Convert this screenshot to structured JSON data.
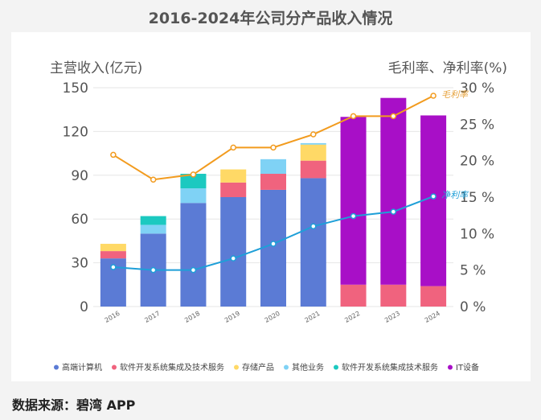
{
  "title": "2016-2024年公司分产品收入情况",
  "source": "数据来源：碧湾 APP",
  "chart_data": {
    "type": "bar",
    "stacked": true,
    "categories": [
      "2016",
      "2017",
      "2018",
      "2019",
      "2020",
      "2021",
      "2022",
      "2023",
      "2024"
    ],
    "ylabel": "主营收入(亿元)",
    "y2label": "毛利率、净利率(%)",
    "ylim": [
      0,
      150
    ],
    "yticks": [
      0,
      30,
      60,
      90,
      120,
      150
    ],
    "y2lim": [
      0,
      30
    ],
    "y2ticks": [
      "0 %",
      "5 %",
      "10 %",
      "15 %",
      "20 %",
      "25 %",
      "30 %"
    ],
    "grid": true,
    "legend_position": "bottom",
    "series": [
      {
        "name": "高端计算机",
        "color": "#5b7bd5",
        "values": [
          33,
          50,
          71,
          75,
          80,
          88,
          0,
          0,
          0
        ]
      },
      {
        "name": "软件开发系统集成及技术服务",
        "color": "#f0637e",
        "values": [
          5,
          0,
          0,
          10,
          11,
          12,
          15,
          15,
          14
        ]
      },
      {
        "name": "存储产品",
        "color": "#ffd966",
        "values": [
          5,
          0,
          0,
          9,
          0,
          11,
          0,
          0,
          0
        ]
      },
      {
        "name": "其他业务",
        "color": "#7fd2f5",
        "values": [
          0,
          6,
          10,
          0,
          10,
          1,
          0,
          0,
          0
        ]
      },
      {
        "name": "软件开发系统集成技术服务",
        "color": "#1cc9c0",
        "values": [
          0,
          6,
          10,
          0,
          0,
          0,
          0,
          0,
          0
        ]
      },
      {
        "name": "IT设备",
        "color": "#a80fc7",
        "values": [
          0,
          0,
          0,
          0,
          0,
          0,
          115,
          128,
          117
        ]
      }
    ],
    "lines": [
      {
        "name": "毛利率",
        "color": "#f29b1e",
        "label_color": "#e6a23c",
        "axis": "right",
        "values": [
          20.8,
          17.4,
          18.1,
          21.8,
          21.8,
          23.6,
          26.1,
          26.1,
          28.9
        ]
      },
      {
        "name": "净利率",
        "color": "#1e9fd8",
        "label_color": "#1e9fd8",
        "axis": "right",
        "values": [
          5.4,
          5.0,
          5.0,
          6.6,
          8.6,
          11.0,
          12.4,
          13.0,
          15.1
        ]
      }
    ]
  }
}
